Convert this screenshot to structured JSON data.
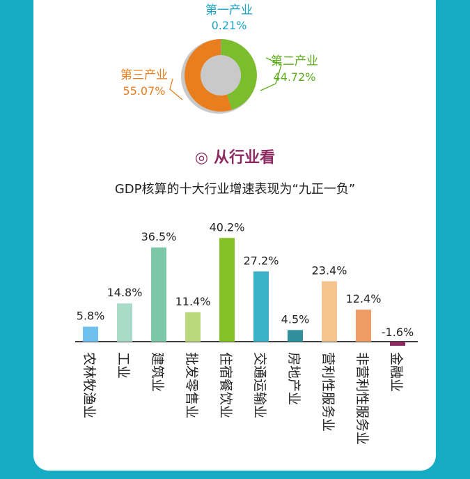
{
  "section": {
    "icon": "double-circle-icon",
    "title": "从行业看",
    "subtitle": "GDP核算的十大行业增速表现为“九正一负”"
  },
  "chart_data": [
    {
      "type": "pie",
      "style": "donut",
      "slices": [
        {
          "label": "第一产业",
          "display": "0.21%",
          "value": 0.21,
          "color": "#6fa8dc"
        },
        {
          "label": "第二产业",
          "display": "44.72%",
          "value": 44.72,
          "color": "#7cbd2e"
        },
        {
          "label": "第三产业",
          "display": "55.07%",
          "value": 55.07,
          "color": "#e87e1e"
        }
      ],
      "label_colors": {
        "第一产业": "#1aa3c4",
        "第二产业": "#5aae1a",
        "第三产业": "#e87e1e"
      }
    },
    {
      "type": "bar",
      "title": "",
      "xlabel": "",
      "ylabel": "",
      "categories": [
        "农林牧渔业",
        "工业",
        "建筑业",
        "批发零售业",
        "住宿餐饮业",
        "交通运输业",
        "房地产业",
        "营利性服务业",
        "非营利性服务业",
        "金融业"
      ],
      "values": [
        5.8,
        14.8,
        36.5,
        11.4,
        40.2,
        27.2,
        4.5,
        23.4,
        12.4,
        -1.6
      ],
      "labels": [
        "5.8%",
        "14.8%",
        "36.5%",
        "11.4%",
        "40.2%",
        "27.2%",
        "4.5%",
        "23.4%",
        "12.4%",
        "-1.6%"
      ],
      "colors": [
        "#6ec0ef",
        "#a9dcc8",
        "#7cc8a6",
        "#b9d97c",
        "#85c227",
        "#3ab1c6",
        "#2f8f9a",
        "#f5c38d",
        "#ef9b64",
        "#8e2b63"
      ],
      "grid": false,
      "legend": "none"
    }
  ]
}
